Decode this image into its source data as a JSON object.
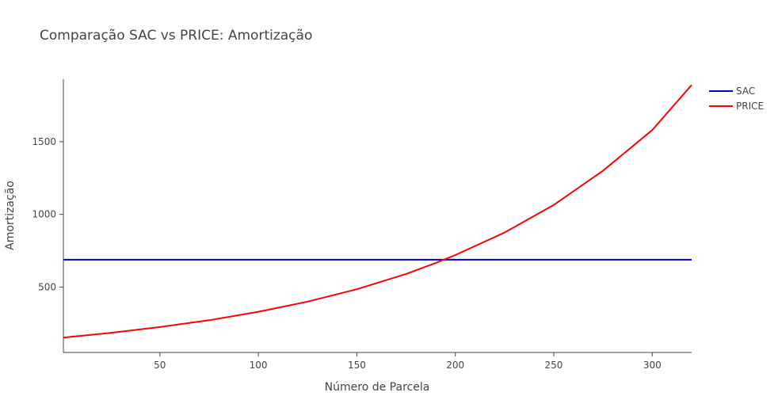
{
  "chart_data": {
    "type": "line",
    "title": "Comparação SAC vs PRICE: Amortização",
    "xlabel": "Número de Parcela",
    "ylabel": "Amortização",
    "xlim": [
      1,
      320
    ],
    "ylim": [
      50,
      1930
    ],
    "x_ticks": [
      50,
      100,
      150,
      200,
      250,
      300
    ],
    "y_ticks": [
      500,
      1000,
      1500
    ],
    "grid": false,
    "legend_position": "top-right",
    "series": [
      {
        "name": "SAC",
        "color": "#0000cc",
        "x": [
          1,
          320
        ],
        "y": [
          688,
          688
        ]
      },
      {
        "name": "PRICE",
        "color": "#ff0000",
        "x": [
          1,
          25,
          50,
          75,
          100,
          125,
          150,
          175,
          190,
          200,
          225,
          250,
          275,
          300,
          320
        ],
        "y": [
          152,
          185,
          225,
          272,
          330,
          400,
          485,
          590,
          665,
          720,
          875,
          1065,
          1300,
          1580,
          1890
        ]
      }
    ]
  }
}
